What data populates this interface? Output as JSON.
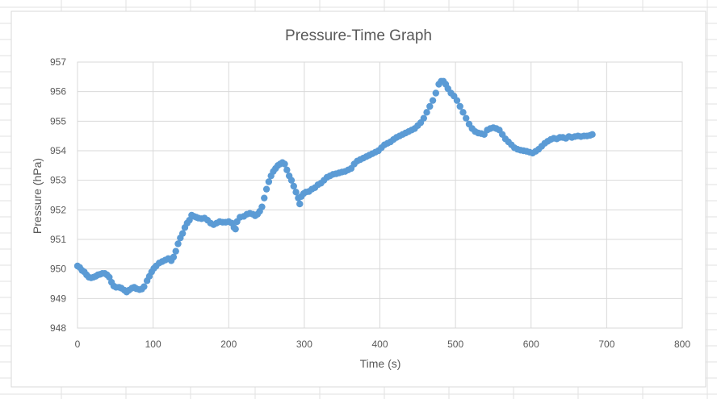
{
  "chart_data": {
    "type": "scatter",
    "title": "Pressure-Time Graph",
    "xlabel": "Time (s)",
    "ylabel": "Pressure (hPa)",
    "xlim": [
      0,
      800
    ],
    "ylim": [
      948,
      957
    ],
    "xticks": [
      "0",
      "100",
      "200",
      "300",
      "400",
      "500",
      "600",
      "700",
      "800"
    ],
    "yticks": [
      "948",
      "949",
      "950",
      "951",
      "952",
      "953",
      "954",
      "955",
      "956",
      "957"
    ],
    "grid": true,
    "legend": "none",
    "series_color": "#5b9bd5",
    "points": [
      [
        0,
        950.1
      ],
      [
        3,
        950.05
      ],
      [
        6,
        949.95
      ],
      [
        9,
        949.9
      ],
      [
        12,
        949.8
      ],
      [
        15,
        949.72
      ],
      [
        18,
        949.7
      ],
      [
        21,
        949.72
      ],
      [
        24,
        949.75
      ],
      [
        27,
        949.8
      ],
      [
        30,
        949.82
      ],
      [
        33,
        949.85
      ],
      [
        36,
        949.85
      ],
      [
        39,
        949.8
      ],
      [
        42,
        949.72
      ],
      [
        45,
        949.55
      ],
      [
        48,
        949.42
      ],
      [
        51,
        949.38
      ],
      [
        55,
        949.38
      ],
      [
        58,
        949.35
      ],
      [
        62,
        949.28
      ],
      [
        65,
        949.22
      ],
      [
        68,
        949.28
      ],
      [
        72,
        949.35
      ],
      [
        75,
        949.38
      ],
      [
        78,
        949.33
      ],
      [
        82,
        949.3
      ],
      [
        85,
        949.32
      ],
      [
        88,
        949.4
      ],
      [
        92,
        949.6
      ],
      [
        95,
        949.75
      ],
      [
        98,
        949.9
      ],
      [
        101,
        950.02
      ],
      [
        104,
        950.1
      ],
      [
        108,
        950.2
      ],
      [
        112,
        950.25
      ],
      [
        116,
        950.3
      ],
      [
        120,
        950.35
      ],
      [
        124,
        950.28
      ],
      [
        127,
        950.4
      ],
      [
        130,
        950.6
      ],
      [
        133,
        950.85
      ],
      [
        136,
        951.05
      ],
      [
        139,
        951.2
      ],
      [
        142,
        951.4
      ],
      [
        145,
        951.55
      ],
      [
        148,
        951.65
      ],
      [
        151,
        951.82
      ],
      [
        154,
        951.78
      ],
      [
        157,
        951.75
      ],
      [
        160,
        951.72
      ],
      [
        164,
        951.7
      ],
      [
        168,
        951.72
      ],
      [
        172,
        951.65
      ],
      [
        176,
        951.55
      ],
      [
        180,
        951.5
      ],
      [
        184,
        951.55
      ],
      [
        188,
        951.6
      ],
      [
        192,
        951.58
      ],
      [
        196,
        951.58
      ],
      [
        200,
        951.6
      ],
      [
        204,
        951.55
      ],
      [
        207,
        951.4
      ],
      [
        209,
        951.35
      ],
      [
        211,
        951.6
      ],
      [
        215,
        951.75
      ],
      [
        220,
        951.78
      ],
      [
        224,
        951.85
      ],
      [
        228,
        951.88
      ],
      [
        232,
        951.85
      ],
      [
        235,
        951.8
      ],
      [
        238,
        951.85
      ],
      [
        241,
        951.95
      ],
      [
        244,
        952.1
      ],
      [
        247,
        952.4
      ],
      [
        250,
        952.7
      ],
      [
        253,
        952.95
      ],
      [
        256,
        953.15
      ],
      [
        259,
        953.3
      ],
      [
        262,
        953.4
      ],
      [
        265,
        953.5
      ],
      [
        268,
        953.55
      ],
      [
        271,
        953.6
      ],
      [
        274,
        953.55
      ],
      [
        277,
        953.35
      ],
      [
        280,
        953.15
      ],
      [
        283,
        953.0
      ],
      [
        286,
        952.8
      ],
      [
        289,
        952.6
      ],
      [
        292,
        952.4
      ],
      [
        294,
        952.2
      ],
      [
        296,
        952.45
      ],
      [
        299,
        952.55
      ],
      [
        302,
        952.6
      ],
      [
        306,
        952.62
      ],
      [
        310,
        952.7
      ],
      [
        314,
        952.75
      ],
      [
        318,
        952.85
      ],
      [
        322,
        952.9
      ],
      [
        326,
        953.0
      ],
      [
        330,
        953.1
      ],
      [
        334,
        953.15
      ],
      [
        338,
        953.2
      ],
      [
        342,
        953.22
      ],
      [
        346,
        953.25
      ],
      [
        350,
        953.28
      ],
      [
        354,
        953.3
      ],
      [
        358,
        953.35
      ],
      [
        362,
        953.4
      ],
      [
        366,
        953.55
      ],
      [
        370,
        953.65
      ],
      [
        374,
        953.7
      ],
      [
        378,
        953.75
      ],
      [
        382,
        953.8
      ],
      [
        386,
        953.85
      ],
      [
        390,
        953.9
      ],
      [
        394,
        953.95
      ],
      [
        398,
        954.0
      ],
      [
        402,
        954.1
      ],
      [
        406,
        954.2
      ],
      [
        410,
        954.25
      ],
      [
        414,
        954.3
      ],
      [
        418,
        954.38
      ],
      [
        422,
        954.45
      ],
      [
        426,
        954.5
      ],
      [
        430,
        954.55
      ],
      [
        434,
        954.6
      ],
      [
        438,
        954.65
      ],
      [
        442,
        954.7
      ],
      [
        446,
        954.75
      ],
      [
        450,
        954.85
      ],
      [
        454,
        954.95
      ],
      [
        458,
        955.1
      ],
      [
        462,
        955.3
      ],
      [
        466,
        955.5
      ],
      [
        470,
        955.7
      ],
      [
        474,
        955.95
      ],
      [
        478,
        956.25
      ],
      [
        481,
        956.35
      ],
      [
        484,
        956.35
      ],
      [
        487,
        956.25
      ],
      [
        490,
        956.1
      ],
      [
        494,
        955.95
      ],
      [
        498,
        955.85
      ],
      [
        502,
        955.7
      ],
      [
        506,
        955.5
      ],
      [
        510,
        955.3
      ],
      [
        514,
        955.1
      ],
      [
        518,
        954.9
      ],
      [
        522,
        954.75
      ],
      [
        526,
        954.65
      ],
      [
        530,
        954.6
      ],
      [
        534,
        954.58
      ],
      [
        538,
        954.55
      ],
      [
        542,
        954.7
      ],
      [
        546,
        954.75
      ],
      [
        550,
        954.78
      ],
      [
        554,
        954.75
      ],
      [
        558,
        954.7
      ],
      [
        562,
        954.55
      ],
      [
        566,
        954.4
      ],
      [
        570,
        954.3
      ],
      [
        574,
        954.2
      ],
      [
        578,
        954.1
      ],
      [
        582,
        954.05
      ],
      [
        586,
        954.02
      ],
      [
        590,
        954.0
      ],
      [
        594,
        953.98
      ],
      [
        598,
        953.95
      ],
      [
        602,
        953.92
      ],
      [
        606,
        953.98
      ],
      [
        610,
        954.05
      ],
      [
        614,
        954.15
      ],
      [
        618,
        954.25
      ],
      [
        622,
        954.32
      ],
      [
        626,
        954.38
      ],
      [
        630,
        954.42
      ],
      [
        634,
        954.4
      ],
      [
        638,
        954.45
      ],
      [
        642,
        954.45
      ],
      [
        646,
        954.42
      ],
      [
        650,
        954.48
      ],
      [
        654,
        954.45
      ],
      [
        658,
        954.48
      ],
      [
        662,
        954.5
      ],
      [
        666,
        954.48
      ],
      [
        670,
        954.5
      ],
      [
        674,
        954.5
      ],
      [
        678,
        954.52
      ],
      [
        681,
        954.55
      ]
    ]
  }
}
